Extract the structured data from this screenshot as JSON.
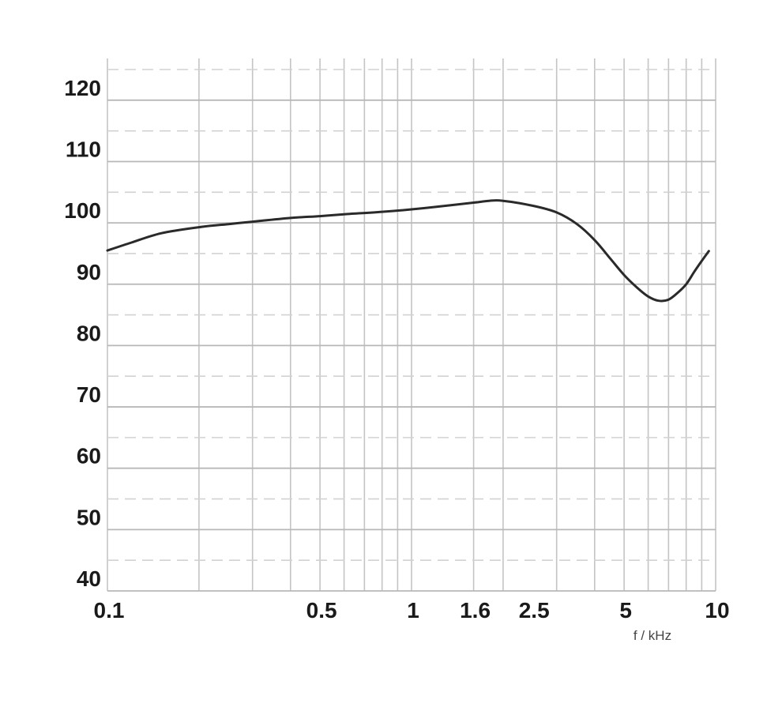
{
  "chart_data": {
    "type": "line",
    "title": "",
    "xlabel": "f / kHz",
    "ylabel": "",
    "x_scale": "log",
    "xlim": [
      0.1,
      10
    ],
    "ylim": [
      40,
      125
    ],
    "x_ticks": [
      {
        "value": 0.1,
        "label": "0.1"
      },
      {
        "value": 0.5,
        "label": "0.5"
      },
      {
        "value": 1,
        "label": "1"
      },
      {
        "value": 1.6,
        "label": "1.6"
      },
      {
        "value": 2.5,
        "label": "2.5"
      },
      {
        "value": 5,
        "label": "5"
      },
      {
        "value": 10,
        "label": "10"
      }
    ],
    "y_ticks": [
      {
        "value": 40,
        "label": "40"
      },
      {
        "value": 50,
        "label": "50"
      },
      {
        "value": 60,
        "label": "60"
      },
      {
        "value": 70,
        "label": "70"
      },
      {
        "value": 80,
        "label": "80"
      },
      {
        "value": 90,
        "label": "90"
      },
      {
        "value": 100,
        "label": "100"
      },
      {
        "value": 110,
        "label": "110"
      },
      {
        "value": 120,
        "label": "120"
      }
    ],
    "grid": {
      "x_minor": true,
      "y_major": true,
      "y_minor_dashed": true
    },
    "series": [
      {
        "x": [
          0.1,
          0.12,
          0.15,
          0.2,
          0.25,
          0.3,
          0.4,
          0.5,
          0.6,
          0.8,
          1.0,
          1.2,
          1.6,
          1.8,
          2.0,
          2.5,
          3.0,
          3.5,
          4.0,
          4.5,
          5.0,
          5.5,
          6.0,
          6.5,
          7.0,
          7.5,
          8.0,
          8.5,
          9.0,
          9.5
        ],
        "y": [
          95.5,
          96.8,
          98.3,
          99.3,
          99.8,
          100.2,
          100.8,
          101.1,
          101.4,
          101.8,
          102.2,
          102.6,
          103.3,
          103.6,
          103.6,
          102.8,
          101.7,
          99.8,
          97.2,
          94.2,
          91.5,
          89.5,
          88.0,
          87.3,
          87.5,
          88.6,
          90.0,
          92.0,
          93.8,
          95.4
        ],
        "color": "#2a2a2a"
      }
    ]
  }
}
